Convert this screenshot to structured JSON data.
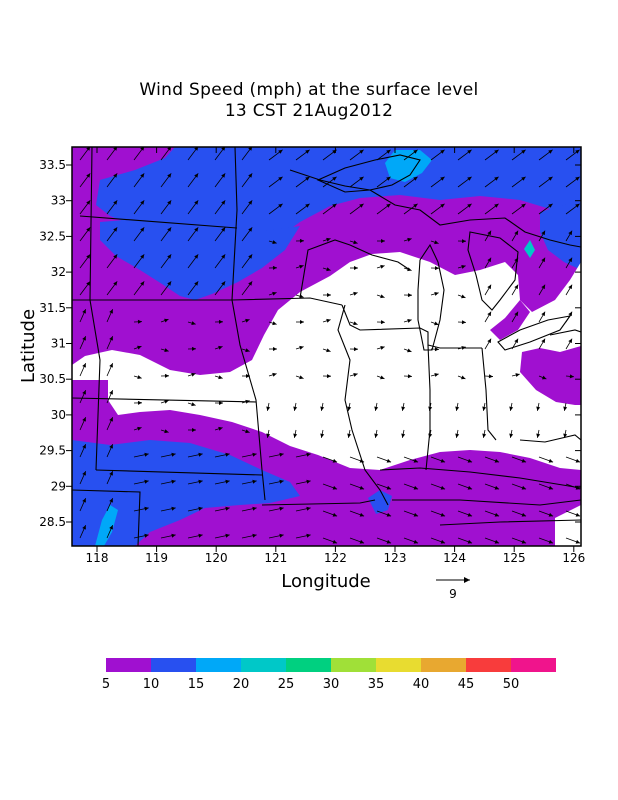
{
  "title": "Wind Speed (mph) at the surface level",
  "subtitle": "13 CST 21Aug2012",
  "xlabel": "Longitude",
  "ylabel": "Latitude",
  "x_ticks": [
    "118",
    "119",
    "120",
    "121",
    "122",
    "123",
    "124",
    "125",
    "126"
  ],
  "y_ticks": [
    "28.5",
    "29",
    "29.5",
    "30",
    "30.5",
    "31",
    "31.5",
    "32",
    "32.5",
    "33",
    "33.5"
  ],
  "vector_reference": "9",
  "colorbar": {
    "labels": [
      "5",
      "10",
      "15",
      "20",
      "25",
      "30",
      "35",
      "40",
      "45",
      "50"
    ],
    "colors": [
      "#a010d0",
      "#2850f0",
      "#00a8f8",
      "#00c8c8",
      "#00d080",
      "#a0e038",
      "#e8dc30",
      "#e8a830",
      "#f83c3c",
      "#f0148c"
    ]
  },
  "field_colors": {
    "below_5": "#ffffff",
    "5_to_10": "#a010d0",
    "10_to_15": "#2850f0",
    "15_to_20": "#00a8f8",
    "20_to_25": "#00c8c8"
  }
}
